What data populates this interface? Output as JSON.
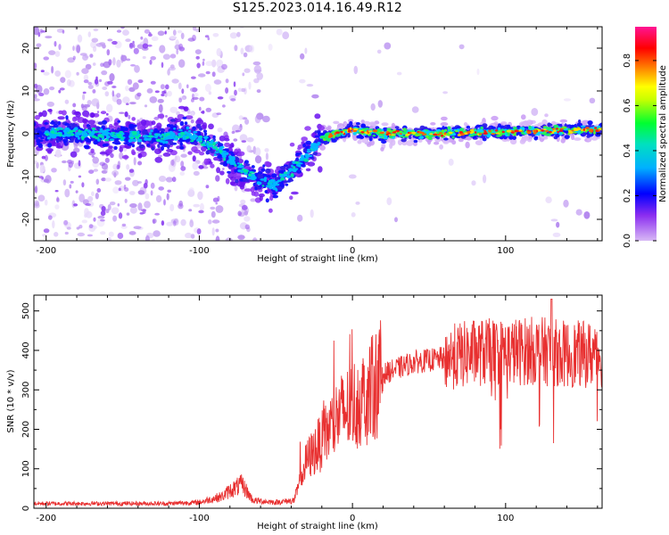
{
  "title": "S125.2023.014.16.49.R12",
  "chart_data": [
    {
      "type": "heatmap",
      "xlabel": "Height of straight line (km)",
      "ylabel": "Frequency (Hz)",
      "xlim": [
        -208,
        163
      ],
      "ylim": [
        -25,
        25
      ],
      "xticks": [
        -200,
        -100,
        0,
        100
      ],
      "yticks": [
        -20,
        -10,
        0,
        10,
        20
      ],
      "colorbar": {
        "label": "Normalized spectral amplitude",
        "range": [
          0,
          0.95
        ],
        "ticks": [
          "0.0",
          "0.2",
          "0.4",
          "0.6",
          "0.8"
        ],
        "colors": [
          "#c9a6f0",
          "#7a1ef0",
          "#0000ff",
          "#00c8ff",
          "#00ff40",
          "#ffff00",
          "#ff6000",
          "#ff0000",
          "#ff1493"
        ]
      },
      "ridge": {
        "x": [
          -205,
          -190,
          -170,
          -150,
          -130,
          -110,
          -100,
          -90,
          -80,
          -70,
          -60,
          -50,
          -45,
          -40,
          -30,
          -20,
          -10,
          0,
          20,
          50,
          100,
          160
        ],
        "y": [
          0,
          0,
          0,
          -0.5,
          -1,
          0,
          -1,
          -3,
          -6,
          -9,
          -11,
          -12,
          -10,
          -9,
          -5,
          -1,
          0,
          1,
          0,
          0,
          0.5,
          1
        ]
      }
    },
    {
      "type": "line",
      "xlabel": "Height of straight line (km)",
      "ylabel": "SNR (10 * v/v)",
      "xlim": [
        -208,
        163
      ],
      "ylim": [
        0,
        540
      ],
      "xticks": [
        -200,
        -100,
        0,
        100
      ],
      "yticks": [
        0,
        100,
        200,
        300,
        400,
        500
      ],
      "color": "#e83030",
      "envelope": {
        "x": [
          -208,
          -120,
          -100,
          -85,
          -80,
          -72,
          -65,
          -50,
          -38,
          -30,
          -20,
          -10,
          0,
          10,
          20,
          40,
          60,
          80,
          100,
          120,
          140,
          163
        ],
        "y": [
          12,
          12,
          15,
          30,
          45,
          60,
          20,
          15,
          20,
          120,
          170,
          230,
          260,
          290,
          340,
          370,
          380,
          395,
          395,
          400,
          390,
          390
        ]
      },
      "notes": "Jagged signal, amplitude noise approx proportional to level; occasional spikes up to ~530 near x=130."
    }
  ]
}
